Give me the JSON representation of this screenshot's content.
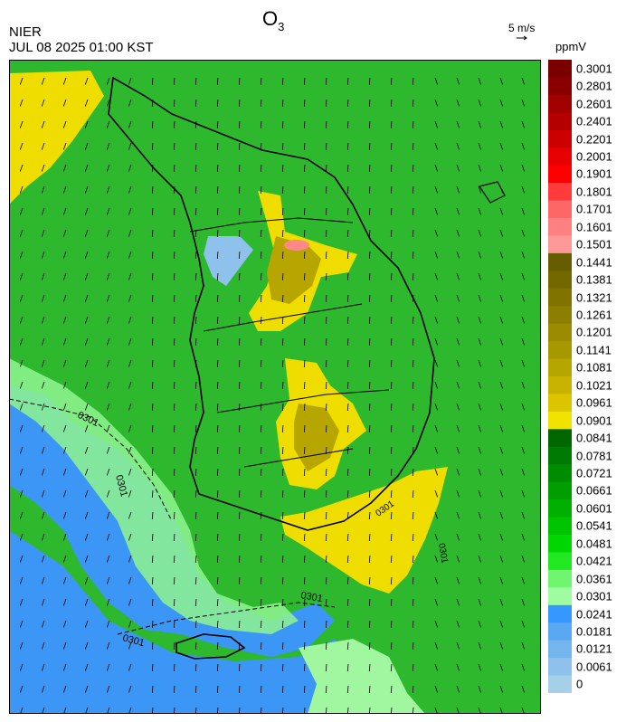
{
  "header": {
    "title_main": "O",
    "title_sub": "3",
    "agency": "NIER",
    "datetime": "JUL 08 2025 01:00 KST",
    "wind_reference": "5 m/s",
    "units": "ppmV"
  },
  "legend": {
    "labels": [
      "0.3001",
      "0.2801",
      "0.2601",
      "0.2401",
      "0.2201",
      "0.2001",
      "0.1901",
      "0.1801",
      "0.1701",
      "0.1601",
      "0.1501",
      "0.1441",
      "0.1381",
      "0.1321",
      "0.1261",
      "0.1201",
      "0.1141",
      "0.1081",
      "0.1021",
      "0.0961",
      "0.0901",
      "0.0841",
      "0.0781",
      "0.0721",
      "0.0661",
      "0.0601",
      "0.0541",
      "0.0481",
      "0.0421",
      "0.0361",
      "0.0301",
      "0.0241",
      "0.0181",
      "0.0121",
      "0.0061",
      "0"
    ],
    "colors": [
      "#7a0000",
      "#8a0000",
      "#a00000",
      "#b40000",
      "#cc0000",
      "#e60000",
      "#ff0000",
      "#ff3b3b",
      "#ff6666",
      "#ff8080",
      "#ff9999",
      "#665c00",
      "#736700",
      "#807300",
      "#8c7e00",
      "#9a8b00",
      "#a89800",
      "#b8a600",
      "#c8b400",
      "#dac500",
      "#f2e200",
      "#006600",
      "#007a00",
      "#008c00",
      "#009e00",
      "#00b000",
      "#00c300",
      "#00d600",
      "#22e822",
      "#70f570",
      "#a0fca0",
      "#3399ff",
      "#5aa8f2",
      "#74b5ee",
      "#8ec2ec",
      "#a6cfe8"
    ]
  },
  "map": {
    "contour_labels": [
      "0301",
      "0301",
      "0301",
      "0301",
      "0301",
      "0301"
    ],
    "colors": {
      "ocean_low": "#3b96f5",
      "ocean_mid": "#a0f7a0",
      "land_base": "#00aa00",
      "land_dark": "#008800",
      "yellow": "#efdd00",
      "olive": "#b8a600",
      "pink": "#ff8888",
      "light_blue": "#8ec2ec",
      "border": "#000000"
    }
  }
}
